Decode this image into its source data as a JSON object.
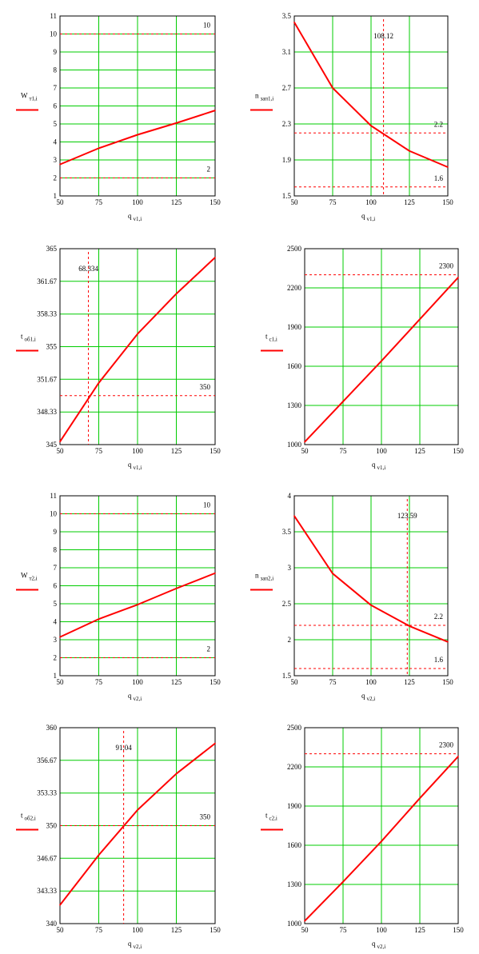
{
  "chart_data": [
    {
      "type": "line",
      "ylabel": "W",
      "ylabel_sub": "т1,i",
      "xlabel": "q",
      "xlabel_sub": "v1,i",
      "xlim": [
        50,
        150
      ],
      "ylim": [
        1,
        11
      ],
      "xticks": [
        "50",
        "75",
        "100",
        "125",
        "150"
      ],
      "yticks": [
        "1",
        "2",
        "3",
        "4",
        "5",
        "6",
        "7",
        "8",
        "9",
        "10",
        "11"
      ],
      "x": [
        50,
        75,
        100,
        125,
        150
      ],
      "y": [
        2.75,
        3.65,
        4.4,
        5.05,
        5.75
      ],
      "hlines": [
        {
          "value": 10,
          "label": "10"
        },
        {
          "value": 2,
          "label": "2"
        }
      ],
      "vlines": [],
      "grid": true,
      "line_color": "#ff0000"
    },
    {
      "type": "line",
      "ylabel": "n",
      "ylabel_sub": "зап1,i",
      "xlabel": "q",
      "xlabel_sub": "v1,i",
      "xlim": [
        50,
        150
      ],
      "ylim": [
        1.5,
        3.5
      ],
      "xticks": [
        "50",
        "75",
        "100",
        "125",
        "150"
      ],
      "yticks": [
        "1.5",
        "1.9",
        "2.3",
        "2.7",
        "3.1",
        "3.5"
      ],
      "x": [
        50,
        75,
        100,
        125,
        150
      ],
      "y": [
        3.43,
        2.7,
        2.28,
        2.0,
        1.82
      ],
      "hlines": [
        {
          "value": 2.2,
          "label": "2.2"
        },
        {
          "value": 1.6,
          "label": "1.6"
        }
      ],
      "vlines": [
        {
          "value": 108.12,
          "label": "108.12"
        }
      ],
      "grid": true,
      "line_color": "#ff0000"
    },
    {
      "type": "line",
      "ylabel": "t",
      "ylabel_sub": "об1,i",
      "xlabel": "q",
      "xlabel_sub": "v1,i",
      "xlim": [
        50,
        150
      ],
      "ylim": [
        345,
        365
      ],
      "xticks": [
        "50",
        "75",
        "100",
        "125",
        "150"
      ],
      "yticks": [
        "345",
        "348.33",
        "351.67",
        "355",
        "358.33",
        "361.67",
        "365"
      ],
      "x": [
        50,
        75,
        100,
        125,
        150
      ],
      "y": [
        345.3,
        351.3,
        356.3,
        360.4,
        364.1
      ],
      "hlines": [
        {
          "value": 350,
          "label": "350"
        }
      ],
      "vlines": [
        {
          "value": 68.334,
          "label": "68.334"
        }
      ],
      "grid": true,
      "line_color": "#ff0000"
    },
    {
      "type": "line",
      "ylabel": "t",
      "ylabel_sub": "c1,i",
      "xlabel": "q",
      "xlabel_sub": "v1,i",
      "xlim": [
        50,
        150
      ],
      "ylim": [
        1000,
        2500
      ],
      "xticks": [
        "50",
        "75",
        "100",
        "125",
        "150"
      ],
      "yticks": [
        "1000",
        "1300",
        "1600",
        "1900",
        "2200",
        "2500"
      ],
      "x": [
        50,
        75,
        100,
        125,
        150
      ],
      "y": [
        1020,
        1330,
        1640,
        1960,
        2280
      ],
      "hlines": [
        {
          "value": 2300,
          "label": "2300"
        }
      ],
      "vlines": [],
      "grid": true,
      "line_color": "#ff0000"
    },
    {
      "type": "line",
      "ylabel": "W",
      "ylabel_sub": "т2,i",
      "xlabel": "q",
      "xlabel_sub": "v2,i",
      "xlim": [
        50,
        150
      ],
      "ylim": [
        1,
        11
      ],
      "xticks": [
        "50",
        "75",
        "100",
        "125",
        "150"
      ],
      "yticks": [
        "1",
        "2",
        "3",
        "4",
        "5",
        "6",
        "7",
        "8",
        "9",
        "10",
        "11"
      ],
      "x": [
        50,
        75,
        100,
        125,
        150
      ],
      "y": [
        3.15,
        4.15,
        4.95,
        5.85,
        6.7
      ],
      "hlines": [
        {
          "value": 10,
          "label": "10"
        },
        {
          "value": 2,
          "label": "2"
        }
      ],
      "vlines": [],
      "grid": true,
      "line_color": "#ff0000"
    },
    {
      "type": "line",
      "ylabel": "n",
      "ylabel_sub": "зап2,i",
      "xlabel": "q",
      "xlabel_sub": "v2,i",
      "xlim": [
        50,
        150
      ],
      "ylim": [
        1.5,
        4
      ],
      "xticks": [
        "50",
        "75",
        "100",
        "125",
        "150"
      ],
      "yticks": [
        "1.5",
        "2",
        "2.5",
        "3",
        "3.5",
        "4"
      ],
      "x": [
        50,
        75,
        100,
        125,
        150
      ],
      "y": [
        3.72,
        2.92,
        2.48,
        2.19,
        1.97
      ],
      "hlines": [
        {
          "value": 2.2,
          "label": "2.2"
        },
        {
          "value": 1.6,
          "label": "1.6"
        }
      ],
      "vlines": [
        {
          "value": 123.59,
          "label": "123.59"
        }
      ],
      "grid": true,
      "line_color": "#ff0000"
    },
    {
      "type": "line",
      "ylabel": "t",
      "ylabel_sub": "об2,i",
      "xlabel": "q",
      "xlabel_sub": "v2,i",
      "xlim": [
        50,
        150
      ],
      "ylim": [
        340,
        360
      ],
      "xticks": [
        "50",
        "75",
        "100",
        "125",
        "150"
      ],
      "yticks": [
        "340",
        "343.33",
        "346.67",
        "350",
        "353.33",
        "356.67",
        "360"
      ],
      "x": [
        50,
        75,
        100,
        125,
        150
      ],
      "y": [
        341.9,
        347.0,
        351.6,
        355.3,
        358.4
      ],
      "hlines": [
        {
          "value": 350,
          "label": "350"
        }
      ],
      "vlines": [
        {
          "value": 91.04,
          "label": "91.04"
        }
      ],
      "grid": true,
      "line_color": "#ff0000"
    },
    {
      "type": "line",
      "ylabel": "t",
      "ylabel_sub": "c2,i",
      "xlabel": "q",
      "xlabel_sub": "v2,i",
      "xlim": [
        50,
        150
      ],
      "ylim": [
        1000,
        2500
      ],
      "xticks": [
        "50",
        "75",
        "100",
        "125",
        "150"
      ],
      "yticks": [
        "1000",
        "1300",
        "1600",
        "1900",
        "2200",
        "2500"
      ],
      "x": [
        50,
        75,
        100,
        125,
        150
      ],
      "y": [
        1020,
        1320,
        1630,
        1960,
        2280
      ],
      "hlines": [
        {
          "value": 2300,
          "label": "2300"
        }
      ],
      "vlines": [],
      "grid": true,
      "line_color": "#ff0000"
    }
  ]
}
